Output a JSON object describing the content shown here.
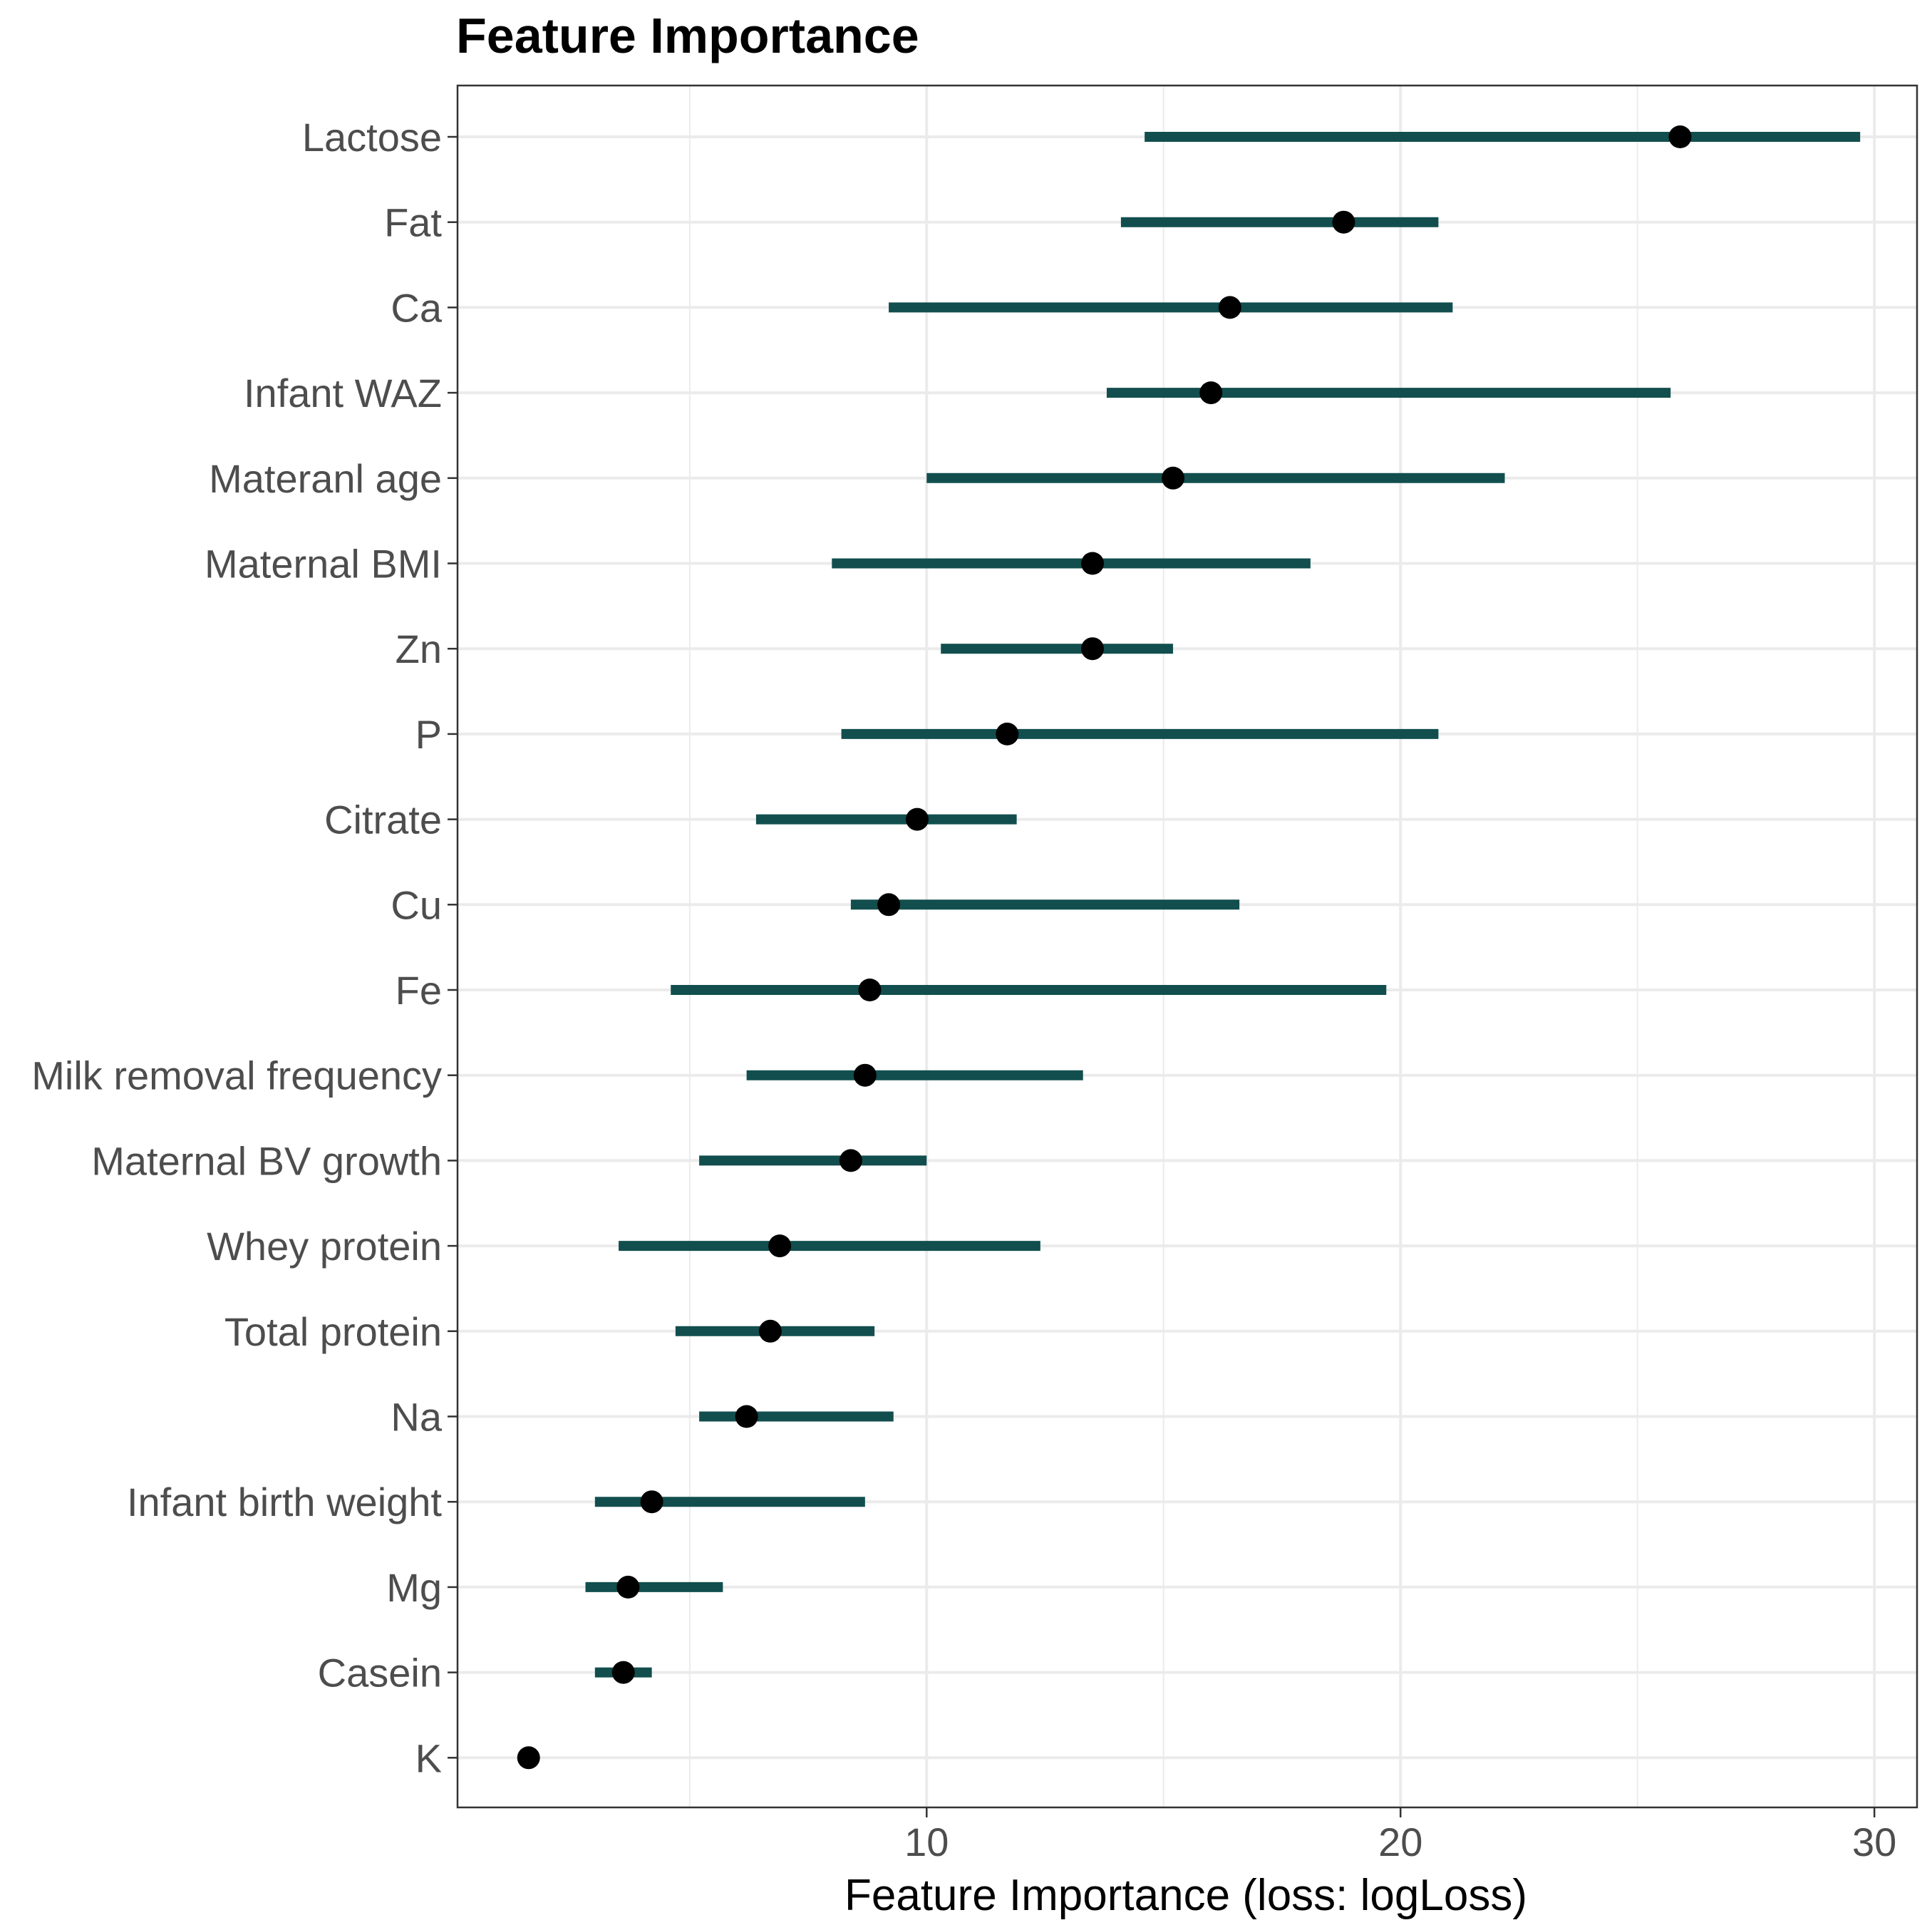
{
  "chart_data": {
    "type": "dot-interval",
    "title": "Feature Importance",
    "xlabel": "Feature Importance (loss: logLoss)",
    "ylabel": "",
    "xlim": [
      0.1,
      30.9
    ],
    "xticks": [
      10,
      20,
      30
    ],
    "xtick_labels": [
      "10",
      "20",
      "30"
    ],
    "grid": true,
    "legend": "none",
    "colors": {
      "interval": "#124e4e",
      "point": "#000000",
      "grid": "#ebebeb",
      "panel_border": "#333333",
      "axis_text": "#4d4d4d",
      "title": "#000000"
    },
    "features": [
      {
        "name": "Lactose",
        "importance": 25.9,
        "lower": 14.6,
        "upper": 29.7
      },
      {
        "name": "Fat",
        "importance": 18.8,
        "lower": 14.1,
        "upper": 20.8
      },
      {
        "name": "Ca",
        "importance": 16.4,
        "lower": 9.2,
        "upper": 21.1
      },
      {
        "name": "Infant WAZ",
        "importance": 16.0,
        "lower": 13.8,
        "upper": 25.7
      },
      {
        "name": "Materanl age",
        "importance": 15.2,
        "lower": 10.0,
        "upper": 22.2
      },
      {
        "name": "Maternal BMI",
        "importance": 13.5,
        "lower": 8.0,
        "upper": 18.1
      },
      {
        "name": "Zn",
        "importance": 13.5,
        "lower": 10.3,
        "upper": 15.2
      },
      {
        "name": "P",
        "importance": 11.7,
        "lower": 8.2,
        "upper": 20.8
      },
      {
        "name": "Citrate",
        "importance": 9.8,
        "lower": 6.4,
        "upper": 11.9
      },
      {
        "name": "Cu",
        "importance": 9.2,
        "lower": 8.4,
        "upper": 16.6
      },
      {
        "name": "Fe",
        "importance": 8.8,
        "lower": 4.6,
        "upper": 19.7
      },
      {
        "name": "Milk removal frequency",
        "importance": 8.7,
        "lower": 6.2,
        "upper": 13.3
      },
      {
        "name": "Maternal BV growth",
        "importance": 8.4,
        "lower": 5.2,
        "upper": 10.0
      },
      {
        "name": "Whey protein",
        "importance": 6.9,
        "lower": 3.5,
        "upper": 12.4
      },
      {
        "name": "Total protein",
        "importance": 6.7,
        "lower": 4.7,
        "upper": 8.9
      },
      {
        "name": "Na",
        "importance": 6.2,
        "lower": 5.2,
        "upper": 9.3
      },
      {
        "name": "Infant birth weight",
        "importance": 4.2,
        "lower": 3.0,
        "upper": 8.7
      },
      {
        "name": "Mg",
        "importance": 3.7,
        "lower": 2.8,
        "upper": 5.7
      },
      {
        "name": "Casein",
        "importance": 3.6,
        "lower": 3.0,
        "upper": 4.2
      },
      {
        "name": "K",
        "importance": 1.6,
        "lower": 1.6,
        "upper": 1.6
      }
    ]
  }
}
